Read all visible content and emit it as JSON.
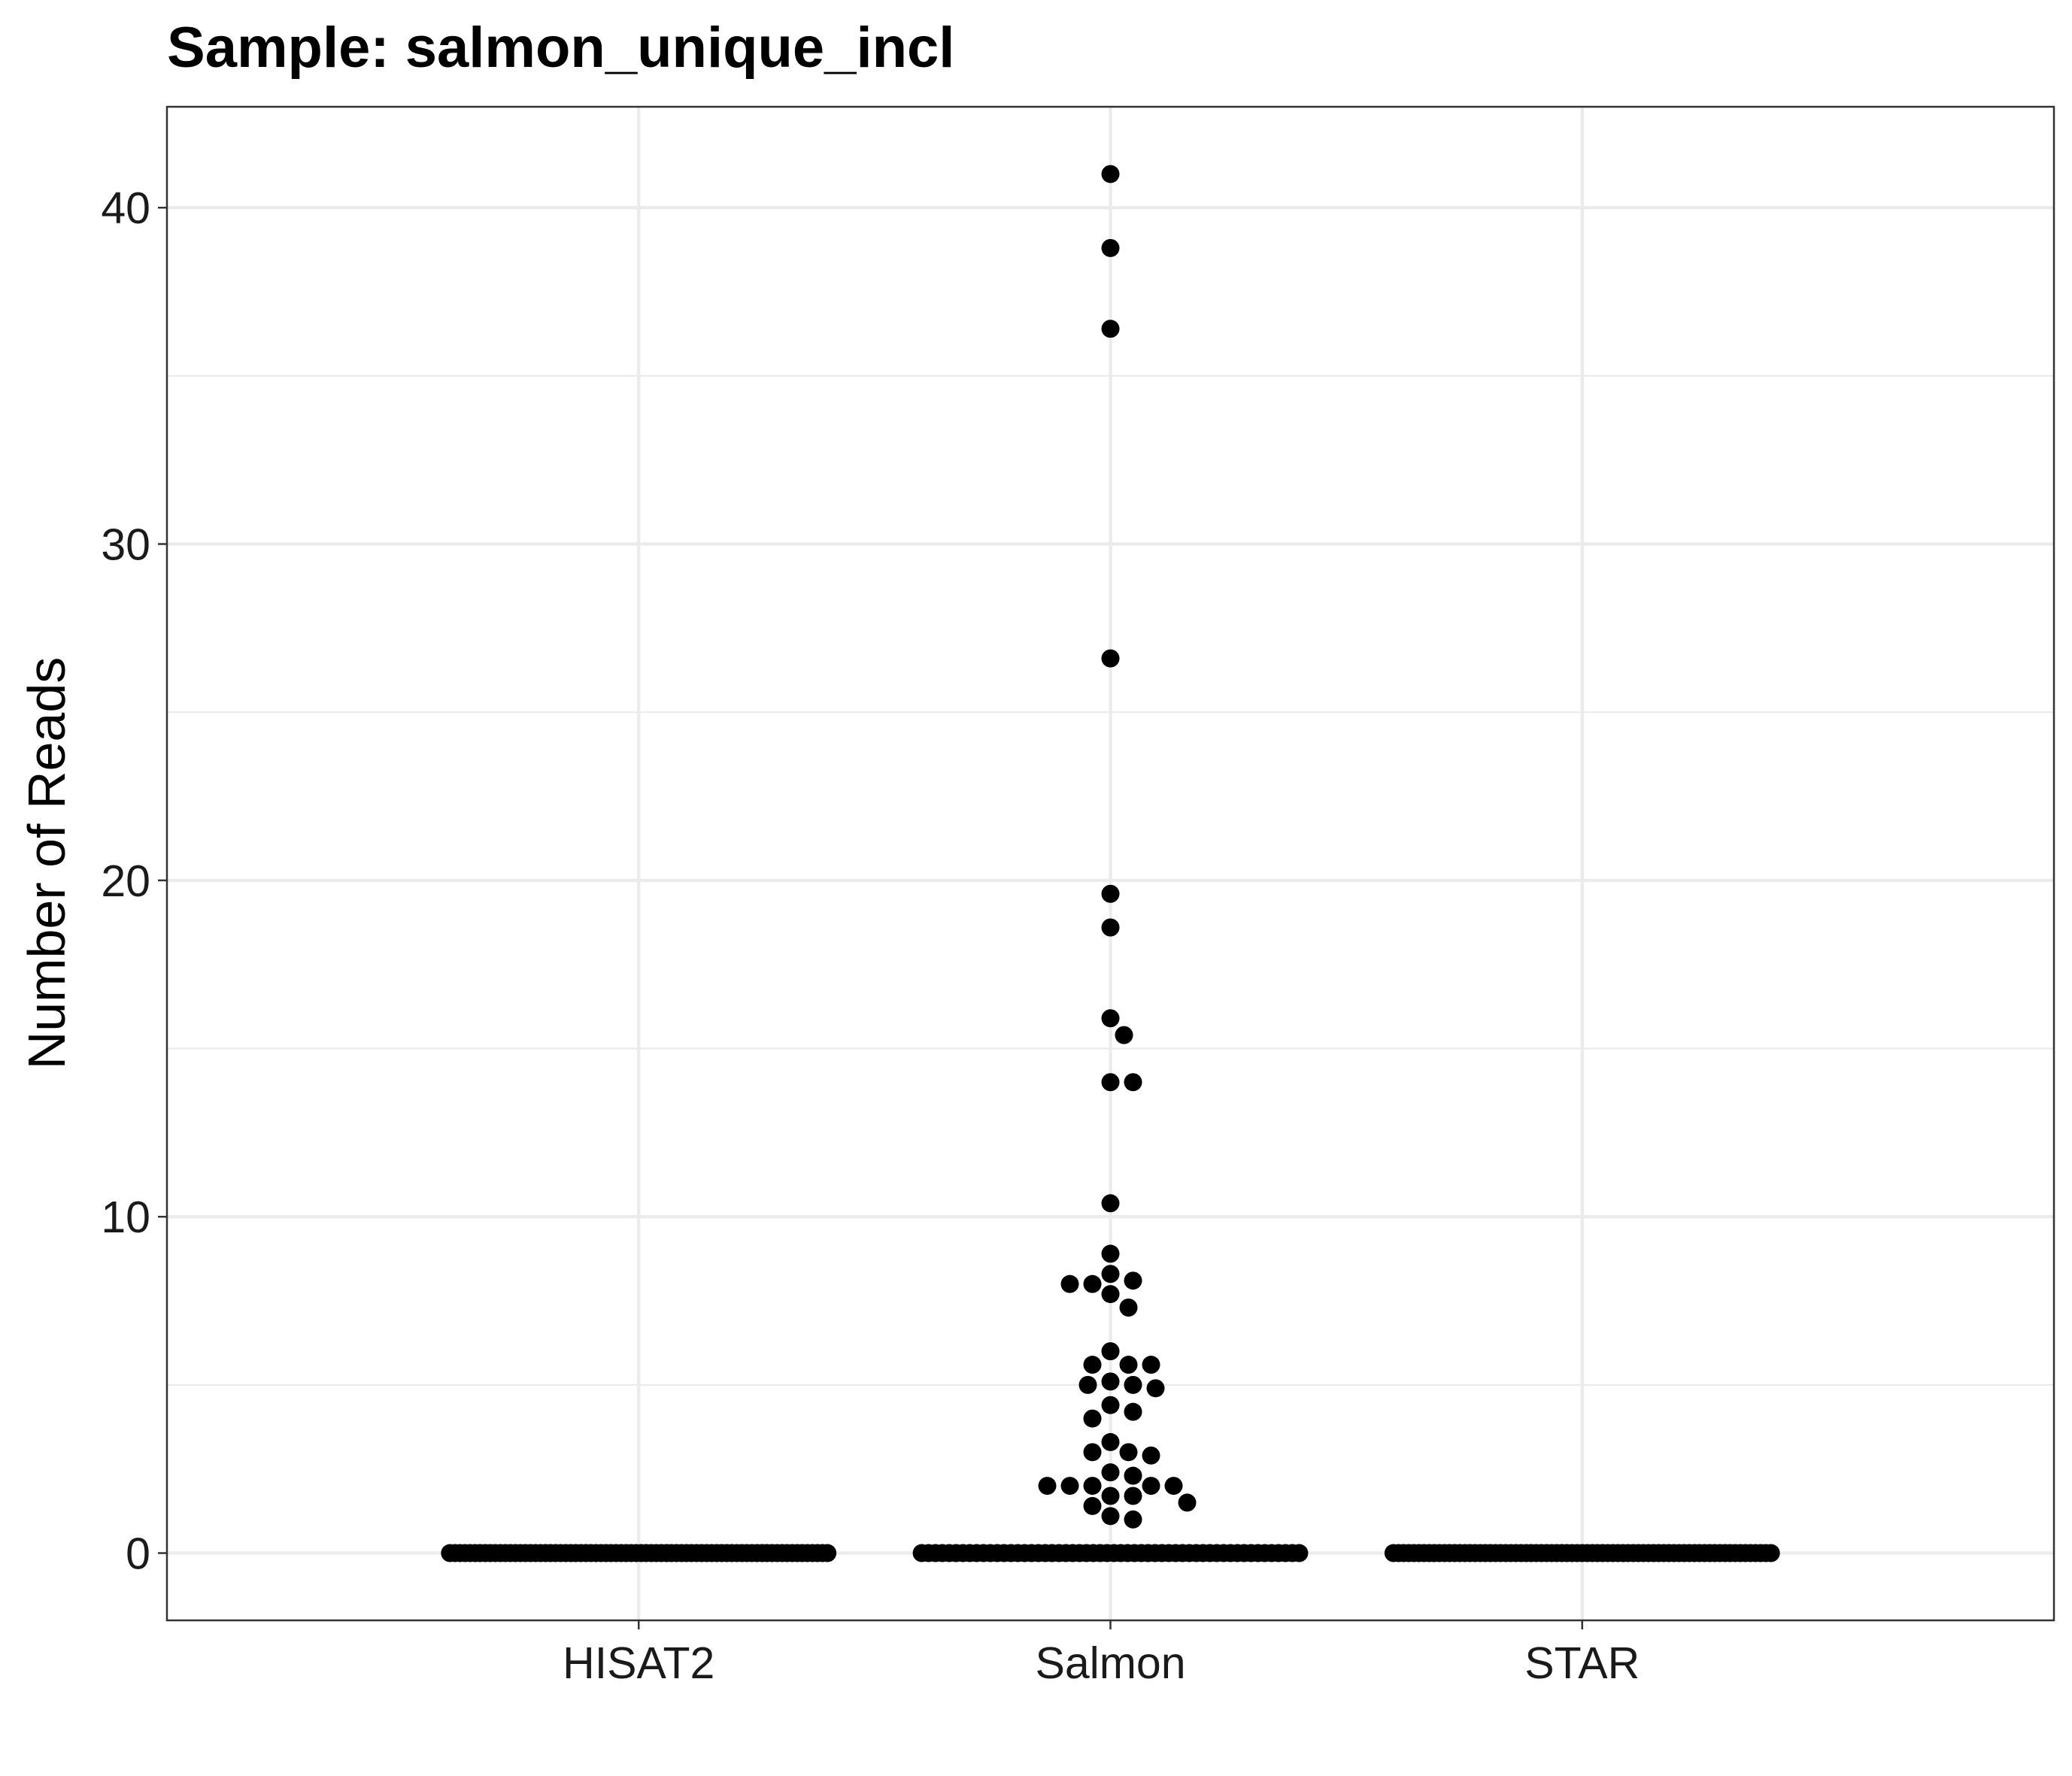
{
  "chart_data": {
    "type": "scatter",
    "style": "beeswarm dot plot",
    "title": "Sample: salmon_unique_incl",
    "xlabel": "",
    "ylabel": "Number of Reads",
    "categories": [
      "HISAT2",
      "Salmon",
      "STAR"
    ],
    "ylim": [
      -2,
      43
    ],
    "yticks": [
      0,
      10,
      20,
      30,
      40
    ],
    "grid": true,
    "legend": "none",
    "point_color": "#000000",
    "series": [
      {
        "category": "HISAT2",
        "zero_count": 76,
        "values": []
      },
      {
        "category": "Salmon",
        "zero_count": 56,
        "values": [
          41.0,
          38.8,
          36.4,
          26.6,
          19.6,
          18.6,
          15.9,
          15.4,
          14.0,
          14.0,
          10.4,
          8.9,
          8.3,
          8.1,
          8.0,
          8.0,
          7.7,
          7.3,
          6.0,
          5.6,
          5.6,
          5.6,
          5.1,
          5.0,
          5.0,
          4.9,
          4.4,
          4.2,
          4.0,
          3.3,
          3.0,
          3.0,
          2.9,
          2.4,
          2.3,
          2.0,
          2.0,
          2.0,
          2.0,
          2.0,
          1.7,
          1.7,
          1.5,
          1.4,
          1.1,
          1.0
        ]
      },
      {
        "category": "STAR",
        "zero_count": 75,
        "values": []
      }
    ]
  }
}
